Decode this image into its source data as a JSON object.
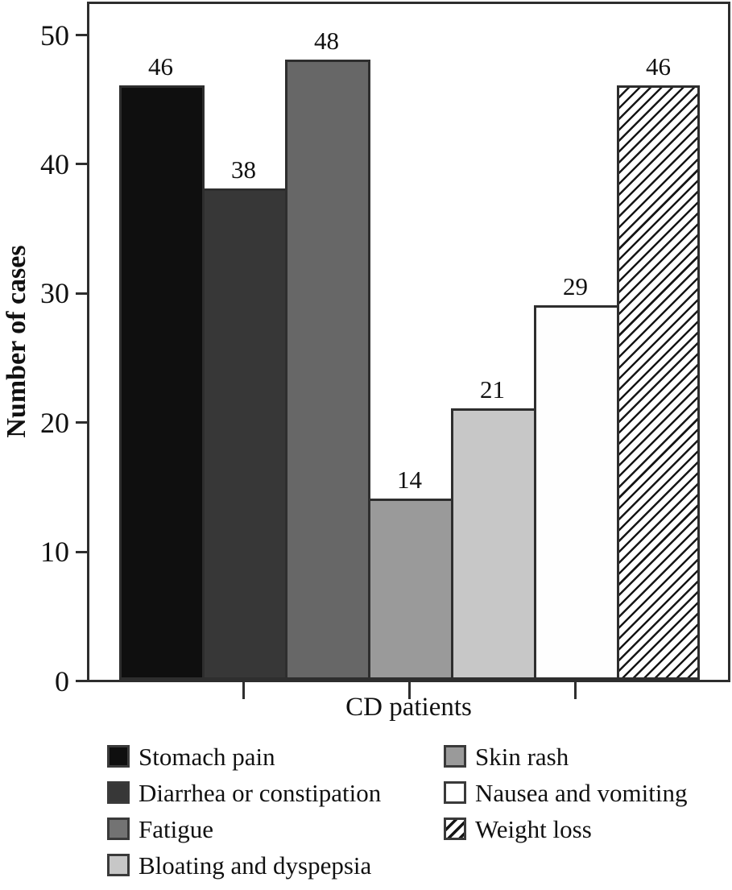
{
  "chart_data": {
    "type": "bar",
    "title": "",
    "xlabel": "CD patients",
    "ylabel": "Number of cases",
    "ylim": [
      0,
      50
    ],
    "yticks": [
      0,
      10,
      20,
      30,
      40,
      50
    ],
    "grid": false,
    "legend_position": "bottom",
    "categories": [
      "Stomach pain",
      "Diarrhea or constipation",
      "Fatigue",
      "Skin rash",
      "Bloating and dyspepsia",
      "Nausea and vomiting",
      "Weight loss"
    ],
    "values": [
      46,
      38,
      48,
      14,
      21,
      29,
      46
    ],
    "series": [
      {
        "name": "Stomach pain",
        "value": 46,
        "color": "#0f0f0f",
        "hatch": false
      },
      {
        "name": "Diarrhea or constipation",
        "value": 38,
        "color": "#373737",
        "hatch": false
      },
      {
        "name": "Fatigue",
        "value": 48,
        "color": "#676767",
        "hatch": false
      },
      {
        "name": "Skin rash",
        "value": 14,
        "color": "#9a9a9a",
        "hatch": false
      },
      {
        "name": "Bloating and dyspepsia",
        "value": 21,
        "color": "#c7c7c7",
        "hatch": false
      },
      {
        "name": "Nausea and vomiting",
        "value": 29,
        "color": "#fefefe",
        "hatch": false
      },
      {
        "name": "Weight loss",
        "value": 46,
        "color": "#ffffff",
        "hatch": true
      }
    ]
  },
  "legend": {
    "columns": [
      {
        "items": [
          {
            "label": "Stomach pain",
            "color": "#0f0f0f",
            "hatch": false
          },
          {
            "label": "Diarrhea or constipation",
            "color": "#373737",
            "hatch": false
          },
          {
            "label": "Fatigue",
            "color": "#737373",
            "hatch": false
          },
          {
            "label": "Bloating and dyspepsia",
            "color": "#c7c7c7",
            "hatch": false
          }
        ]
      },
      {
        "items": [
          {
            "label": "Skin rash",
            "color": "#9a9a9a",
            "hatch": false
          },
          {
            "label": "Nausea and vomiting",
            "color": "#ffffff",
            "hatch": false
          },
          {
            "label": "Weight loss",
            "color": "#ffffff",
            "hatch": true
          }
        ]
      }
    ]
  },
  "colors": {
    "plot_border": "#2e2e2e",
    "bar_border": "#2e2e2e",
    "hatch_line": "#161616",
    "text": "#111111",
    "background": "#ffffff"
  }
}
